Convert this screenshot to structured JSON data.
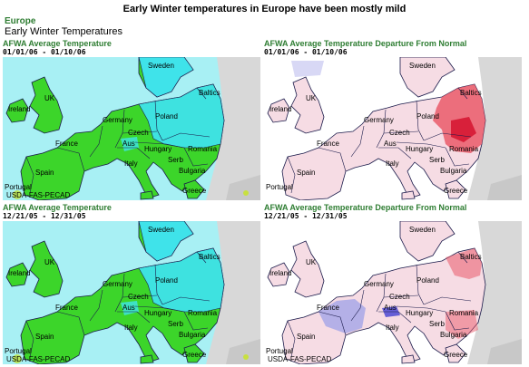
{
  "header": {
    "title": "Early Winter temperatures in Europe have been mostly mild",
    "region": "Europe",
    "subtitle": "Early Winter Temperatures"
  },
  "panels": [
    {
      "title": "AFWA Average Temperature",
      "dates": "01/01/06 - 01/10/06",
      "credit": "USDA-FAS-PECAD",
      "kind": "temperature"
    },
    {
      "title": "AFWA Average Temperature Departure From Normal",
      "dates": "01/01/06 - 01/10/06",
      "credit": "",
      "kind": "departure-jan"
    },
    {
      "title": "AFWA Average Temperature",
      "dates": "12/21/05 - 12/31/05",
      "credit": "USDA-FAS-PECAD",
      "kind": "temperature"
    },
    {
      "title": "AFWA Average Temperature Departure From Normal",
      "dates": "12/21/05 - 12/31/05",
      "credit": "USDA-FAS-PECAD",
      "kind": "departure-dec"
    }
  ],
  "countries": [
    "Ireland",
    "UK",
    "France",
    "Spain",
    "Portugal",
    "Germany",
    "Poland",
    "Czech",
    "Aus",
    "Hungary",
    "Romania",
    "Serb",
    "Bulgaria",
    "Italy",
    "Greece",
    "Sweden",
    "Baltics"
  ],
  "colors": {
    "sea_cold": "#a8f0f4",
    "land_green": "#3cd52a",
    "land_cyan": "#3fe3ea",
    "land_outside": "#d8d8d8",
    "sea_white": "#ffffff",
    "dep_land": "#f6dce4",
    "dep_red": "#ea5a6a",
    "dep_blue": "#a8a8e8",
    "border": "#1a1a4a"
  }
}
